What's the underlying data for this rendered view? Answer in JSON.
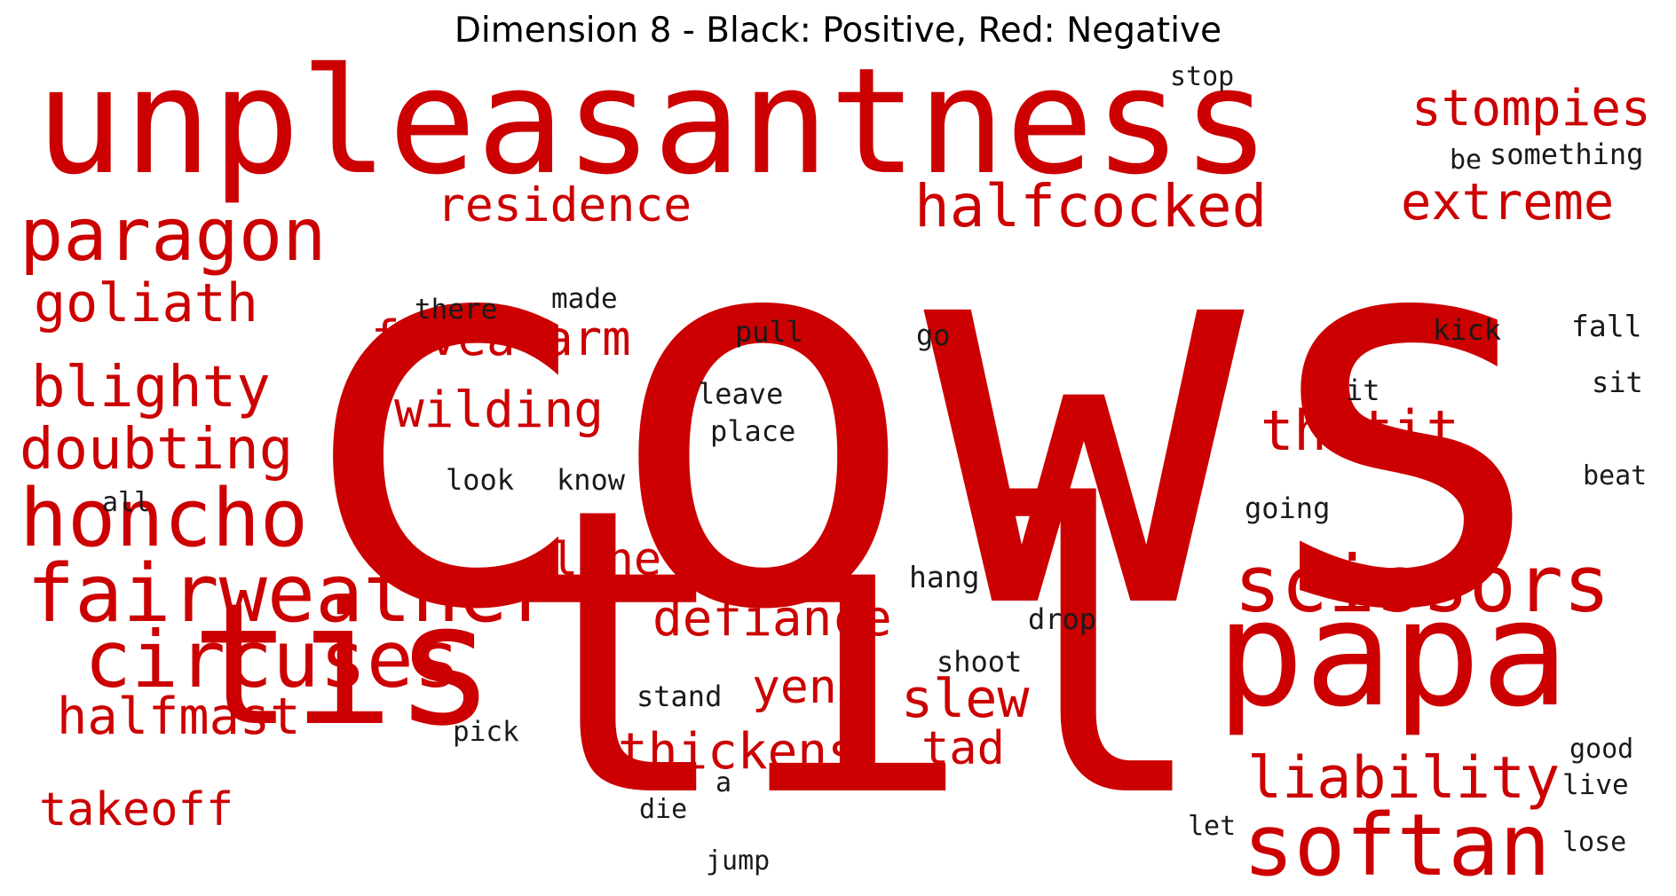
{
  "title": "Dimension 8 - Black: Positive, Red: Negative",
  "colors": {
    "positive": "#1a1a1a",
    "negative": "#cc0000"
  },
  "words": [
    {
      "text": "cows",
      "polarity": "negative"
    },
    {
      "text": "til",
      "polarity": "negative"
    },
    {
      "text": "unpleasantness",
      "polarity": "negative"
    },
    {
      "text": "tis",
      "polarity": "negative"
    },
    {
      "text": "papa",
      "polarity": "negative"
    },
    {
      "text": "softan",
      "polarity": "negative"
    },
    {
      "text": "scissors",
      "polarity": "negative"
    },
    {
      "text": "fairweather",
      "polarity": "negative"
    },
    {
      "text": "honcho",
      "polarity": "negative"
    },
    {
      "text": "circuses",
      "polarity": "negative"
    },
    {
      "text": "paragon",
      "polarity": "negative"
    },
    {
      "text": "stompies",
      "polarity": "negative"
    },
    {
      "text": "halfcocked",
      "polarity": "negative"
    },
    {
      "text": "extreme",
      "polarity": "negative"
    },
    {
      "text": "residence",
      "polarity": "negative"
    },
    {
      "text": "goliath",
      "polarity": "negative"
    },
    {
      "text": "blighty",
      "polarity": "negative"
    },
    {
      "text": "doubting",
      "polarity": "negative"
    },
    {
      "text": "thatit",
      "polarity": "negative"
    },
    {
      "text": "fivealarm",
      "polarity": "negative"
    },
    {
      "text": "wilding",
      "polarity": "negative"
    },
    {
      "text": "liability",
      "polarity": "negative"
    },
    {
      "text": "defiance",
      "polarity": "negative"
    },
    {
      "text": "halfmast",
      "polarity": "negative"
    },
    {
      "text": "slew",
      "polarity": "negative"
    },
    {
      "text": "thickens",
      "polarity": "negative"
    },
    {
      "text": "takeoff",
      "polarity": "negative"
    },
    {
      "text": "lone",
      "polarity": "negative"
    },
    {
      "text": "yen",
      "polarity": "negative"
    },
    {
      "text": "tad",
      "polarity": "negative"
    },
    {
      "text": "stop",
      "polarity": "positive"
    },
    {
      "text": "be",
      "polarity": "positive"
    },
    {
      "text": "something",
      "polarity": "positive"
    },
    {
      "text": "there",
      "polarity": "positive"
    },
    {
      "text": "made",
      "polarity": "positive"
    },
    {
      "text": "pull",
      "polarity": "positive"
    },
    {
      "text": "go",
      "polarity": "positive"
    },
    {
      "text": "kick",
      "polarity": "positive"
    },
    {
      "text": "fall",
      "polarity": "positive"
    },
    {
      "text": "leave",
      "polarity": "positive"
    },
    {
      "text": "place",
      "polarity": "positive"
    },
    {
      "text": "it",
      "polarity": "positive"
    },
    {
      "text": "sit",
      "polarity": "positive"
    },
    {
      "text": "look",
      "polarity": "positive"
    },
    {
      "text": "know",
      "polarity": "positive"
    },
    {
      "text": "all",
      "polarity": "positive"
    },
    {
      "text": "beat",
      "polarity": "positive"
    },
    {
      "text": "going",
      "polarity": "positive"
    },
    {
      "text": "hang",
      "polarity": "positive"
    },
    {
      "text": "drop",
      "polarity": "positive"
    },
    {
      "text": "shoot",
      "polarity": "positive"
    },
    {
      "text": "stand",
      "polarity": "positive"
    },
    {
      "text": "pick",
      "polarity": "positive"
    },
    {
      "text": "good",
      "polarity": "positive"
    },
    {
      "text": "a",
      "polarity": "positive"
    },
    {
      "text": "live",
      "polarity": "positive"
    },
    {
      "text": "die",
      "polarity": "positive"
    },
    {
      "text": "let",
      "polarity": "positive"
    },
    {
      "text": "lose",
      "polarity": "positive"
    },
    {
      "text": "jump",
      "polarity": "positive"
    }
  ]
}
